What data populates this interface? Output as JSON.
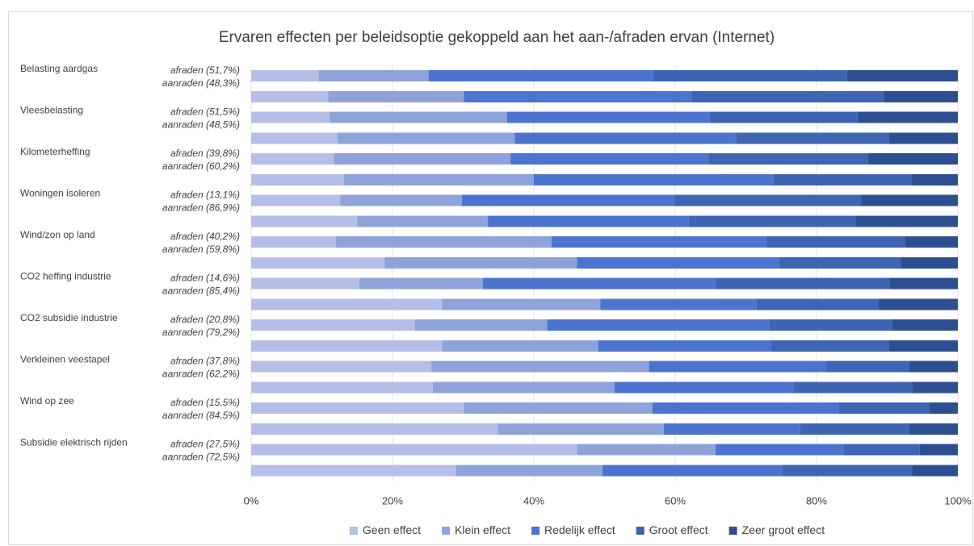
{
  "chart_data": {
    "type": "stacked_barh",
    "title": "Ervaren effecten per beleidsoptie gekoppeld aan het aan-/afraden ervan (Internet)",
    "groups": [
      "Belasting aardgas",
      "Vleesbelasting",
      "Kilometerheffing",
      "Woningen isoleren",
      "Wind/zon op land",
      "CO2 heffing industrie",
      "CO2 subsidie industrie",
      "Verkleinen veestapel",
      "Wind op zee",
      "Subsidie elektrisch rijden"
    ],
    "categories": [
      "afraden (51,7%)",
      "aanraden (48,3%)",
      "afraden (51,5%)",
      "aanraden (48,5%)",
      "afraden (39,8%)",
      "aanraden (60,2%)",
      "afraden (13,1%)",
      "aanraden (86,9%)",
      "afraden (40,2%)",
      "aanraden (59,8%)",
      "afraden (14,6%)",
      "aanraden (85,4%)",
      "afraden (20,8%)",
      "aanraden (79,2%)",
      "afraden (37,8%)",
      "aanraden (62,2%)",
      "afraden (15,5%)",
      "aanraden (84,5%)",
      "afraden (27,5%)",
      "aanraden (72,5%)"
    ],
    "series": [
      {
        "name": "Geen effect",
        "color": "#b3bfe6",
        "values": [
          9.6,
          10.9,
          11.1,
          12.2,
          11.7,
          13.1,
          12.6,
          15.0,
          12.0,
          18.9,
          15.3,
          27.0,
          23.2,
          27.0,
          25.5,
          25.7,
          30.1,
          34.9,
          46.1,
          29.0
        ]
      },
      {
        "name": "Klein effect",
        "color": "#8ea3d9",
        "values": [
          15.5,
          19.2,
          25.1,
          25.1,
          25.0,
          26.9,
          17.2,
          18.5,
          30.5,
          27.2,
          17.5,
          22.4,
          18.7,
          22.1,
          30.8,
          25.7,
          26.7,
          23.5,
          19.6,
          20.7
        ]
      },
      {
        "name": "Redelijk effect",
        "color": "#4b74d0",
        "values": [
          31.8,
          32.3,
          28.7,
          31.3,
          28.0,
          33.9,
          30.0,
          28.4,
          30.4,
          28.6,
          32.9,
          22.1,
          31.4,
          24.5,
          25.0,
          25.4,
          26.3,
          19.3,
          18.1,
          25.5
        ]
      },
      {
        "name": "Groot effect",
        "color": "#3e64b4",
        "values": [
          27.4,
          27.2,
          20.9,
          21.6,
          22.6,
          19.5,
          26.5,
          23.7,
          19.6,
          17.3,
          24.6,
          17.3,
          17.4,
          16.6,
          11.8,
          16.8,
          12.9,
          15.4,
          10.8,
          18.3
        ]
      },
      {
        "name": "Zeer groot effect",
        "color": "#2d4f91",
        "values": [
          15.7,
          10.4,
          14.2,
          9.8,
          12.7,
          6.6,
          13.7,
          14.4,
          7.5,
          8.0,
          9.7,
          11.2,
          9.3,
          9.8,
          6.9,
          6.4,
          4.0,
          6.9,
          5.4,
          6.5
        ]
      }
    ],
    "xlim": [
      0,
      100
    ],
    "xticks": [
      {
        "value": 0,
        "label": "0%"
      },
      {
        "value": 20,
        "label": "20%"
      },
      {
        "value": 40,
        "label": "40%"
      },
      {
        "value": 60,
        "label": "60%"
      },
      {
        "value": 80,
        "label": "80%"
      },
      {
        "value": 100,
        "label": "100%"
      }
    ],
    "grid": true,
    "legend": "bottom"
  }
}
